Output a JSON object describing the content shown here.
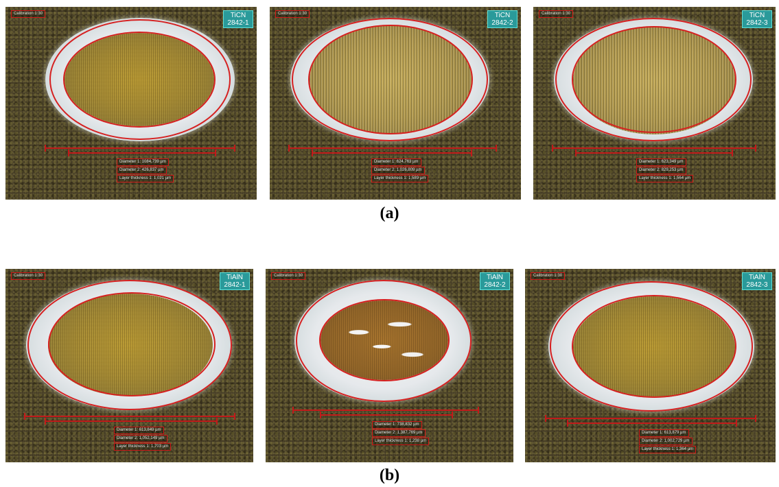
{
  "captions": {
    "a": "(a)",
    "b": "(b)"
  },
  "rows": {
    "ticn": [
      {
        "calibration": "Calibration 1:30",
        "tag_line1": "TiCN",
        "tag_line2": "2842-1",
        "diam1": "Diameter 1: 1084,739 µm",
        "diam2": "Diameter 2: 426,837 µm",
        "layer": "Layer thickness 1: 1,021 µm"
      },
      {
        "calibration": "Calibration 1:30",
        "tag_line1": "TiCN",
        "tag_line2": "2842-2",
        "diam1": "Diameter 1: 624,763 µm",
        "diam2": "Diameter 2: 1,026,809 µm",
        "layer": "Layer thickness 1: 1,589 µm"
      },
      {
        "calibration": "Calibration 1:30",
        "tag_line1": "TiCN",
        "tag_line2": "2842-3",
        "diam1": "Diameter 1: 623,349 µm",
        "diam2": "Diameter 2: 829,253 µm",
        "layer": "Layer thickness 1: 1,564 µm"
      }
    ],
    "tialn": [
      {
        "calibration": "Calibration 1:30",
        "tag_line1": "TiAlN",
        "tag_line2": "2842-1",
        "diam1": "Diameter 1: 613,849 µm",
        "diam2": "Diameter 2: 1,052,149 µm",
        "layer": "Layer thickness 1: 1,703 µm"
      },
      {
        "calibration": "Calibration 1:30",
        "tag_line1": "TiAlN",
        "tag_line2": "2842-2",
        "diam1": "Diameter 1: 738,832 µm",
        "diam2": "Diameter 2: 1,387,769 µm",
        "layer": "Layer thickness 1: 1,238 µm"
      },
      {
        "calibration": "Calibration 1:30",
        "tag_line1": "TiAlN",
        "tag_line2": "2842-3",
        "diam1": "Diameter 1: 613,879 µm",
        "diam2": "Diameter 2: 1,002,729 µm",
        "layer": "Layer thickness 1: 1,364 µm"
      }
    ]
  }
}
